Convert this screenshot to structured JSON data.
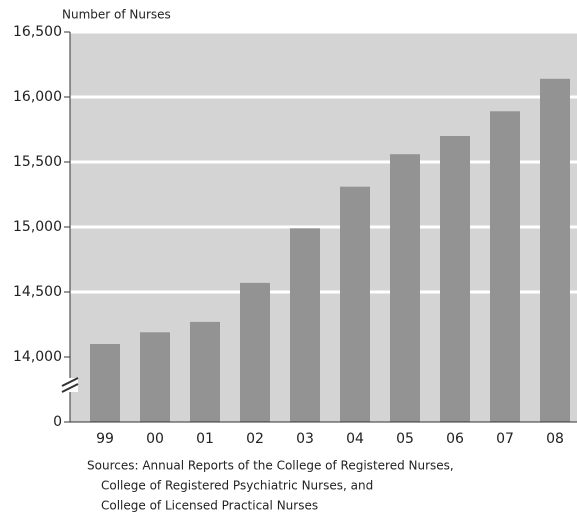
{
  "chart_data": {
    "type": "bar",
    "y_axis_label": "Number of Nurses",
    "categories": [
      "99",
      "00",
      "01",
      "02",
      "03",
      "04",
      "05",
      "06",
      "07",
      "08"
    ],
    "values": [
      14100,
      14190,
      14270,
      14570,
      14990,
      15310,
      15560,
      15700,
      15890,
      16140
    ],
    "color": "#939393",
    "ylim": [
      0,
      16500
    ],
    "axis_break": [
      0,
      14000
    ],
    "yticks": [
      0,
      {
        "value": 14000,
        "label": "14,000"
      },
      {
        "value": 14500,
        "label": "14,500"
      },
      {
        "value": 15000,
        "label": "15,000"
      },
      {
        "value": 15500,
        "label": "15,500"
      },
      {
        "value": 16000,
        "label": "16,000"
      },
      {
        "value": 16500,
        "label": "16,500"
      }
    ],
    "grid": true,
    "source": [
      "Sources:  Annual Reports of the College of Registered Nurses,",
      "College of Registered Psychiatric Nurses, and",
      "College of Licensed Practical Nurses"
    ]
  }
}
